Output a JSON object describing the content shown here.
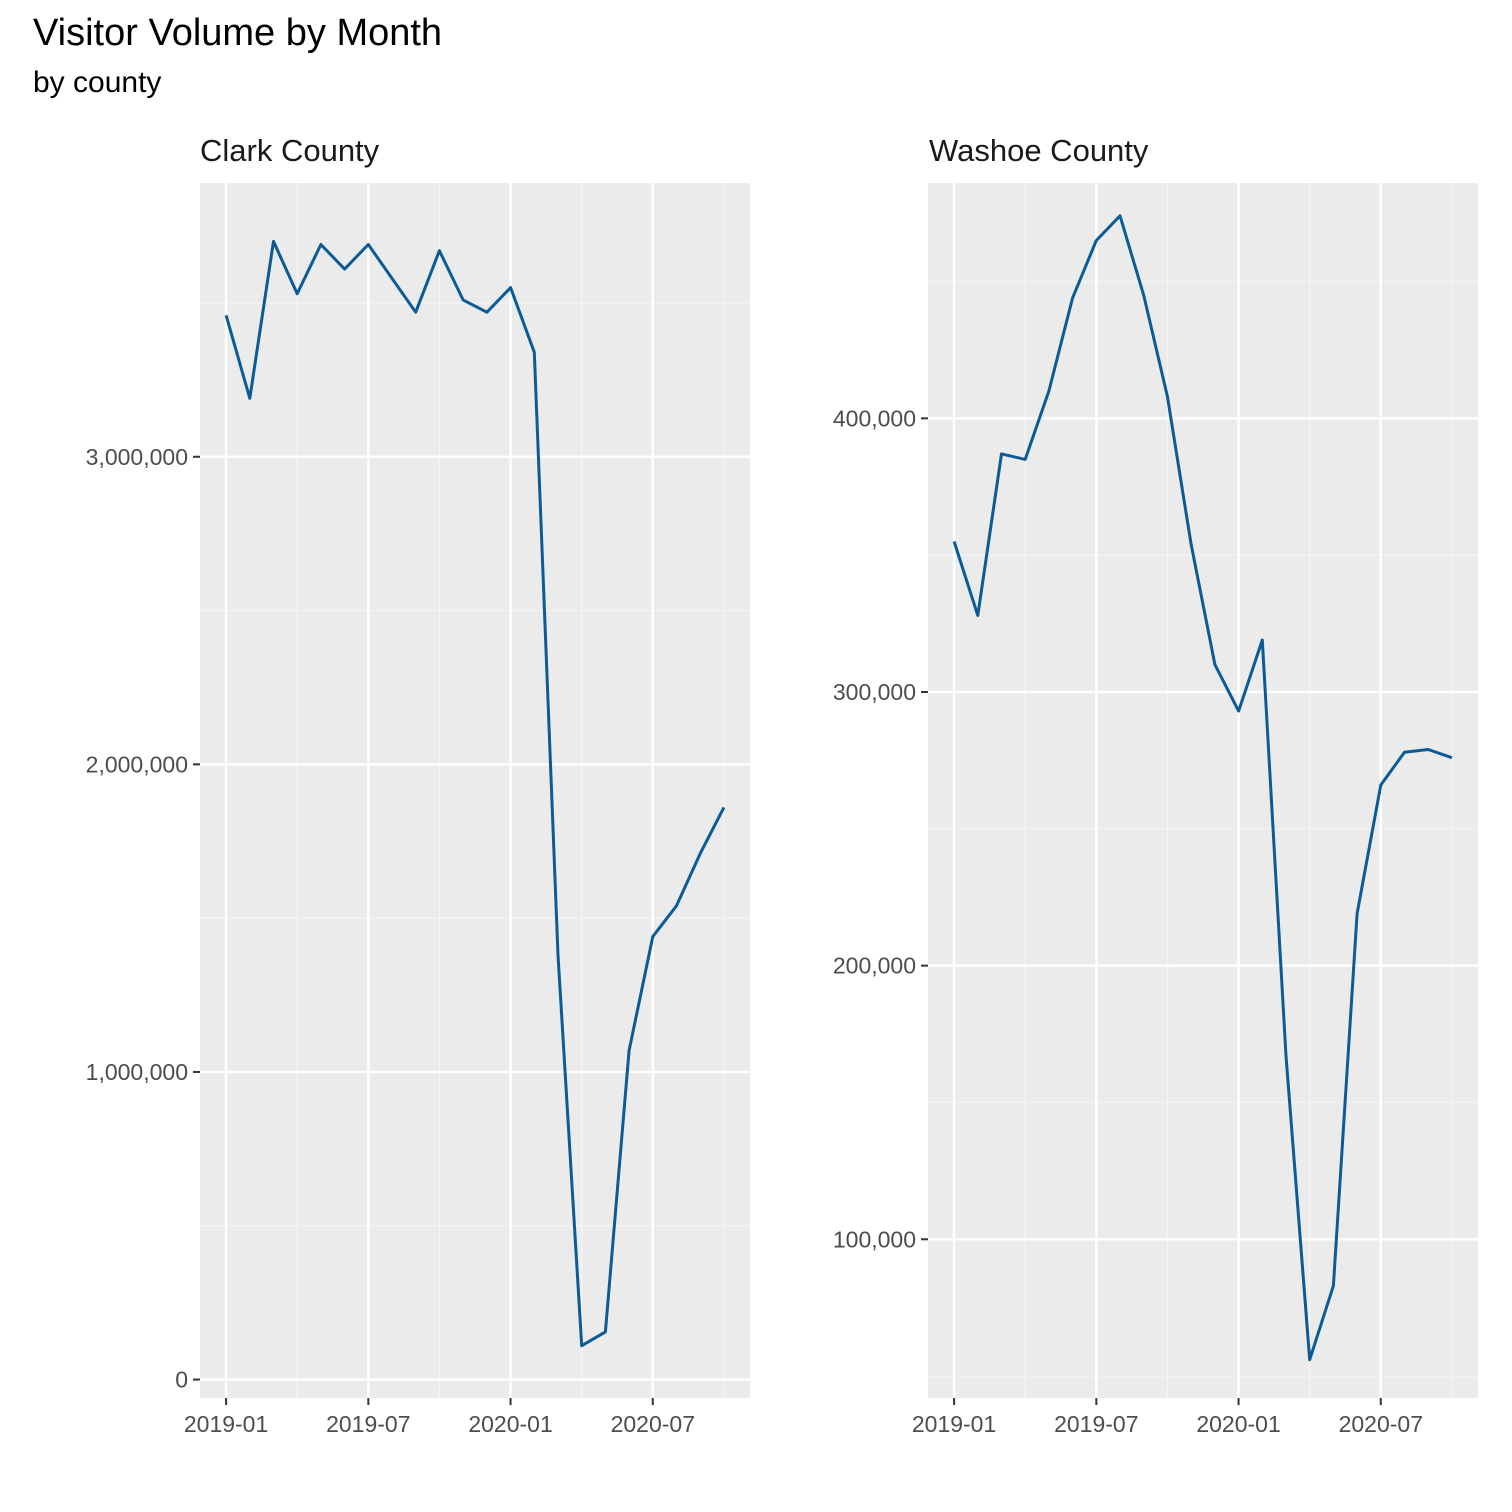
{
  "title": "Visitor Volume by Month",
  "subtitle": "by county",
  "line_color": "#0b5c96",
  "chart_data": [
    {
      "type": "line",
      "facet": "Clark County",
      "x_ticks": [
        "2019-01",
        "2019-07",
        "2020-01",
        "2020-07"
      ],
      "y_ticks": [
        0,
        1000000,
        2000000,
        3000000
      ],
      "y_tick_labels": [
        "0",
        "1,000,000",
        "2,000,000",
        "3,000,000"
      ],
      "grid": true,
      "x": [
        "2019-01",
        "2019-02",
        "2019-03",
        "2019-04",
        "2019-05",
        "2019-06",
        "2019-07",
        "2019-08",
        "2019-09",
        "2019-10",
        "2019-11",
        "2019-12",
        "2020-01",
        "2020-02",
        "2020-03",
        "2020-04",
        "2020-05",
        "2020-06",
        "2020-07",
        "2020-08",
        "2020-09",
        "2020-10"
      ],
      "values": [
        3460000,
        3190000,
        3700000,
        3530000,
        3690000,
        3610000,
        3690000,
        3580000,
        3470000,
        3670000,
        3510000,
        3470000,
        3550000,
        3340000,
        1380000,
        110000,
        155000,
        1070000,
        1440000,
        1540000,
        1710000,
        1860000
      ]
    },
    {
      "type": "line",
      "facet": "Washoe County",
      "x_ticks": [
        "2019-01",
        "2019-07",
        "2020-01",
        "2020-07"
      ],
      "y_ticks": [
        100000,
        200000,
        300000,
        400000
      ],
      "y_tick_labels": [
        "100,000",
        "200,000",
        "300,000",
        "400,000"
      ],
      "grid": true,
      "x": [
        "2019-01",
        "2019-02",
        "2019-03",
        "2019-04",
        "2019-05",
        "2019-06",
        "2019-07",
        "2019-08",
        "2019-09",
        "2019-10",
        "2019-11",
        "2019-12",
        "2020-01",
        "2020-02",
        "2020-03",
        "2020-04",
        "2020-05",
        "2020-06",
        "2020-07",
        "2020-08",
        "2020-09",
        "2020-10"
      ],
      "values": [
        355000,
        328000,
        387000,
        385000,
        410000,
        444000,
        465000,
        474000,
        445000,
        408000,
        354000,
        310000,
        293000,
        319000,
        167000,
        56000,
        83000,
        219000,
        266000,
        278000,
        279000,
        276000
      ]
    }
  ]
}
